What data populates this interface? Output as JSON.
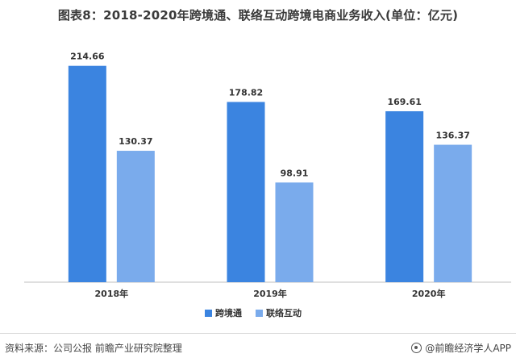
{
  "title": "图表8：2018-2020年跨境通、联络互动跨境电商业务收入(单位：亿元)",
  "chart_data": {
    "type": "bar",
    "title": "图表8：2018-2020年跨境通、联络互动跨境电商业务收入(单位：亿元)",
    "categories": [
      "2018年",
      "2019年",
      "2020年"
    ],
    "series": [
      {
        "name": "跨境通",
        "values": [
          214.66,
          178.82,
          169.61
        ],
        "color": "#3b84e0"
      },
      {
        "name": "联络互动",
        "values": [
          130.37,
          98.91,
          136.37
        ],
        "color": "#7aabec"
      }
    ],
    "ylim": [
      0,
      240
    ],
    "grid": false,
    "legend": "bottom-center"
  },
  "footer": {
    "source": "资料来源：公司公报 前瞻产业研究院整理",
    "brand": "@前瞻经济学人APP"
  }
}
